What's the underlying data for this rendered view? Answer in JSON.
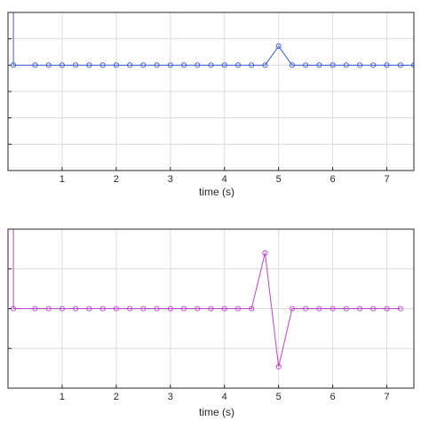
{
  "chart_data": [
    {
      "type": "line",
      "xlabel": "time (s)",
      "ylabel": "",
      "title": "",
      "grid": true,
      "xlim": [
        0,
        7.5
      ],
      "ylim": [
        -0.5,
        0.25
      ],
      "xticks": [
        1,
        2,
        3,
        4,
        5,
        6,
        7
      ],
      "yticks": [
        -0.5,
        -0.375,
        -0.25,
        -0.125,
        0,
        0.125,
        0.25
      ],
      "series": [
        {
          "color": "#3b5bd9",
          "marker": "circle",
          "x": [
            0.1,
            0.1,
            0.5,
            0.75,
            1.0,
            1.25,
            1.5,
            1.75,
            2.0,
            2.25,
            2.5,
            2.75,
            3.0,
            3.25,
            3.5,
            3.75,
            4.0,
            4.25,
            4.5,
            4.75,
            5.0,
            5.25,
            5.5,
            5.75,
            6.0,
            6.25,
            6.5,
            6.75,
            7.0,
            7.25,
            7.5
          ],
          "y": [
            0.3,
            0.0,
            0.0,
            0.0,
            0.0,
            0.0,
            0.0,
            0.0,
            0.0,
            0.0,
            0.0,
            0.0,
            0.0,
            0.0,
            0.0,
            0.0,
            0.0,
            0.0,
            0.0,
            0.0,
            0.09,
            0.0,
            0.0,
            0.0,
            0.0,
            0.0,
            0.0,
            0.0,
            0.0,
            0.0,
            0.0
          ],
          "marked": [
            false,
            true,
            true,
            true,
            true,
            true,
            true,
            true,
            true,
            true,
            true,
            true,
            true,
            true,
            true,
            true,
            true,
            true,
            true,
            true,
            true,
            true,
            true,
            true,
            true,
            true,
            true,
            true,
            true,
            true,
            true
          ]
        }
      ]
    },
    {
      "type": "line",
      "xlabel": "time (s)",
      "ylabel": "",
      "title": "",
      "grid": true,
      "xlim": [
        0,
        7.5
      ],
      "ylim": [
        -1.0,
        1.0
      ],
      "xticks": [
        1,
        2,
        3,
        4,
        5,
        6,
        7
      ],
      "yticks": [
        -1.0,
        -0.5,
        0,
        0.5,
        1.0
      ],
      "series": [
        {
          "color": "#c040d0",
          "marker": "circle",
          "x": [
            0.1,
            0.1,
            0.5,
            0.75,
            1.0,
            1.25,
            1.5,
            1.75,
            2.0,
            2.25,
            2.5,
            2.75,
            3.0,
            3.25,
            3.5,
            3.75,
            4.0,
            4.25,
            4.5,
            4.75,
            5.0,
            5.25,
            5.5,
            5.75,
            6.0,
            6.25,
            6.5,
            6.75,
            7.0,
            7.25
          ],
          "y": [
            1.05,
            0.0,
            0.0,
            0.0,
            0.0,
            0.0,
            0.0,
            0.0,
            0.0,
            0.0,
            0.0,
            0.0,
            0.0,
            0.0,
            0.0,
            0.0,
            0.0,
            0.0,
            0.0,
            0.7,
            -0.73,
            0.0,
            0.0,
            0.0,
            0.0,
            0.0,
            0.0,
            0.0,
            0.0,
            0.0
          ],
          "marked": [
            false,
            true,
            true,
            true,
            true,
            true,
            true,
            true,
            true,
            true,
            true,
            true,
            true,
            true,
            true,
            true,
            true,
            true,
            true,
            true,
            true,
            true,
            true,
            true,
            true,
            true,
            true,
            true,
            true,
            true
          ]
        }
      ]
    }
  ]
}
